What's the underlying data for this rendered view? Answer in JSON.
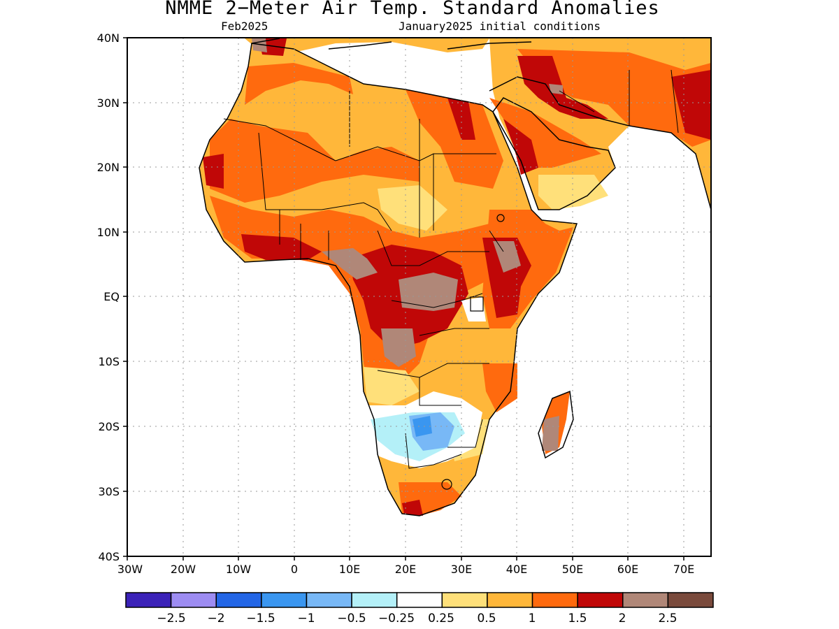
{
  "title": "NMME 2−Meter Air Temp. Standard Anomalies",
  "subtitle_left": "Feb2025",
  "subtitle_right": "January2025 initial conditions",
  "axes": {
    "lat_labels": [
      "40N",
      "30N",
      "20N",
      "10N",
      "EQ",
      "10S",
      "20S",
      "30S",
      "40S"
    ],
    "lon_labels": [
      "30W",
      "20W",
      "10W",
      "0",
      "10E",
      "20E",
      "30E",
      "40E",
      "50E",
      "60E",
      "70E"
    ],
    "grid": "dotted"
  },
  "colorbar": {
    "colors": [
      "#3b22b8",
      "#9d8cf2",
      "#2366e6",
      "#3a96f0",
      "#78b8f6",
      "#b4f0f8",
      "#ffffff",
      "#ffe07a",
      "#ffb73a",
      "#ff6a0e",
      "#c00707",
      "#b08778",
      "#7a4a3c"
    ],
    "labels": [
      "−2.5",
      "−2",
      "−1.5",
      "−1",
      "−0.5",
      "−0.25",
      "0.25",
      "0.5",
      "1",
      "1.5",
      "2",
      "2.5"
    ]
  },
  "map": {
    "land_palette": {
      "ocean": "#ffffff",
      "neutral": "#ffffff",
      "weak_warm": "#ffe07a",
      "warm": "#ffb73a",
      "strong_warm": "#ff6a0e",
      "very_strong": "#c00707",
      "extreme": "#b08778",
      "cool": "#b4f0f8",
      "cold": "#78b8f6",
      "colder": "#3a96f0"
    }
  }
}
